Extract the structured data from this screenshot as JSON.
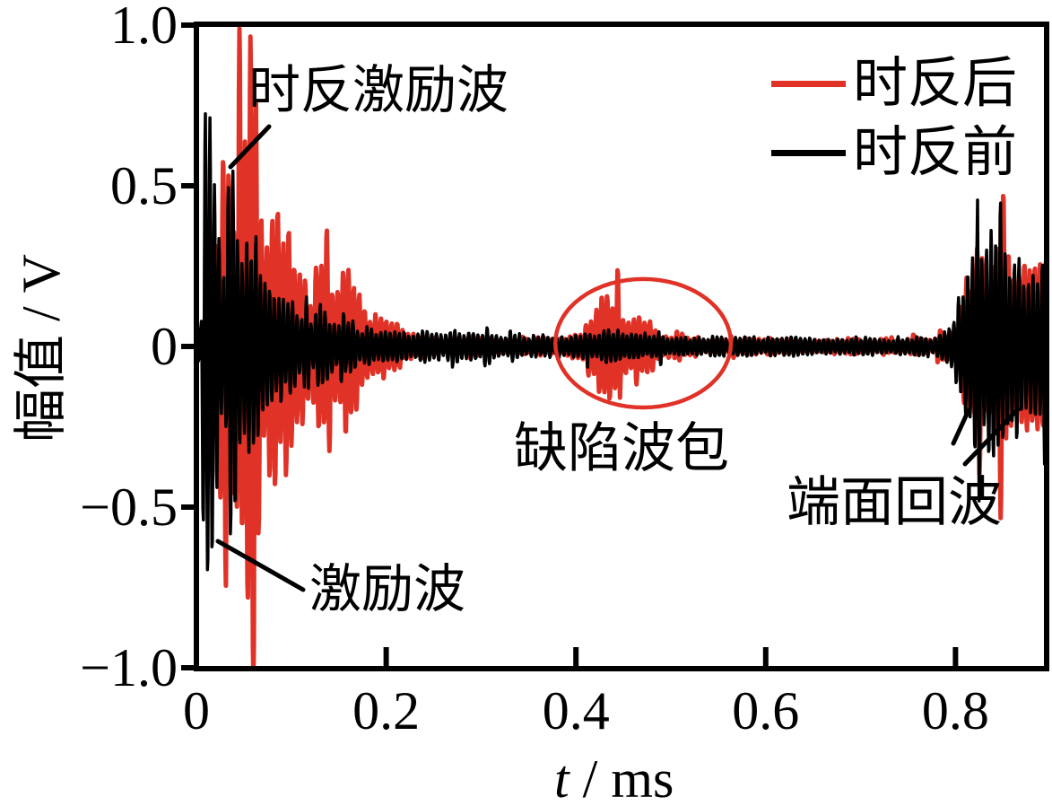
{
  "chart_data": {
    "type": "line",
    "title": "",
    "description": "Ultrasonic guided-wave time-domain signals before and after time reversal",
    "x_axis": {
      "label_var": "t",
      "label_unit": " / ms",
      "range": [
        0,
        0.896
      ],
      "ticks": [
        0,
        0.2,
        0.4,
        0.6,
        0.8
      ],
      "tick_labels": [
        "0",
        "0.2",
        "0.4",
        "0.6",
        "0.8"
      ]
    },
    "y_axis": {
      "label": "幅值 / V",
      "range": [
        -1.0,
        1.0
      ],
      "ticks": [
        1.0,
        0.5,
        0,
        -0.5,
        -1.0
      ],
      "tick_labels": [
        "1.0",
        "0.5",
        "0",
        "−0.5",
        "−1.0"
      ]
    },
    "grid": false,
    "legend_position": "top-right",
    "legend": {
      "entries": [
        {
          "label": "时反后",
          "color": "#e03227"
        },
        {
          "label": "时反前",
          "color": "#000000"
        }
      ]
    },
    "series": [
      {
        "name": "时反后",
        "color": "#e03227",
        "carrier_freq_per_ms": 175,
        "seed": 11,
        "stroke_width": 5,
        "envelope": [
          [
            0,
            0.03
          ],
          [
            0.008,
            0.05
          ],
          [
            0.018,
            0.12
          ],
          [
            0.026,
            0.5
          ],
          [
            0.033,
            0.62
          ],
          [
            0.04,
            0.4
          ],
          [
            0.046,
            0.9
          ],
          [
            0.05,
            1.05
          ],
          [
            0.062,
            1.05
          ],
          [
            0.068,
            0.55
          ],
          [
            0.074,
            0.38
          ],
          [
            0.082,
            0.55
          ],
          [
            0.09,
            0.48
          ],
          [
            0.1,
            0.36
          ],
          [
            0.11,
            0.26
          ],
          [
            0.12,
            0.2
          ],
          [
            0.13,
            0.34
          ],
          [
            0.142,
            0.24
          ],
          [
            0.155,
            0.3
          ],
          [
            0.168,
            0.2
          ],
          [
            0.18,
            0.14
          ],
          [
            0.2,
            0.1
          ],
          [
            0.215,
            0.07
          ],
          [
            0.23,
            0.045
          ],
          [
            0.25,
            0.032
          ],
          [
            0.28,
            0.028
          ],
          [
            0.32,
            0.026
          ],
          [
            0.36,
            0.026
          ],
          [
            0.39,
            0.03
          ],
          [
            0.405,
            0.06
          ],
          [
            0.418,
            0.14
          ],
          [
            0.43,
            0.22
          ],
          [
            0.44,
            0.2
          ],
          [
            0.45,
            0.12
          ],
          [
            0.462,
            0.1
          ],
          [
            0.472,
            0.07
          ],
          [
            0.485,
            0.05
          ],
          [
            0.5,
            0.035
          ],
          [
            0.53,
            0.028
          ],
          [
            0.58,
            0.026
          ],
          [
            0.65,
            0.026
          ],
          [
            0.72,
            0.026
          ],
          [
            0.77,
            0.028
          ],
          [
            0.795,
            0.04
          ],
          [
            0.805,
            0.12
          ],
          [
            0.815,
            0.28
          ],
          [
            0.825,
            0.42
          ],
          [
            0.835,
            0.3
          ],
          [
            0.845,
            0.38
          ],
          [
            0.855,
            0.32
          ],
          [
            0.865,
            0.26
          ],
          [
            0.878,
            0.32
          ],
          [
            0.89,
            0.28
          ],
          [
            0.896,
            0.3
          ]
        ]
      },
      {
        "name": "时反前",
        "color": "#000000",
        "carrier_freq_per_ms": 205,
        "seed": 7,
        "stroke_width": 3.5,
        "envelope": [
          [
            0,
            0.05
          ],
          [
            0.005,
            0.08
          ],
          [
            0.008,
            1.06
          ],
          [
            0.016,
            1.06
          ],
          [
            0.02,
            0.6
          ],
          [
            0.026,
            0.35
          ],
          [
            0.032,
            0.5
          ],
          [
            0.04,
            0.52
          ],
          [
            0.05,
            0.46
          ],
          [
            0.06,
            0.4
          ],
          [
            0.07,
            0.32
          ],
          [
            0.08,
            0.26
          ],
          [
            0.09,
            0.2
          ],
          [
            0.1,
            0.16
          ],
          [
            0.112,
            0.13
          ],
          [
            0.125,
            0.11
          ],
          [
            0.14,
            0.095
          ],
          [
            0.16,
            0.085
          ],
          [
            0.18,
            0.075
          ],
          [
            0.2,
            0.065
          ],
          [
            0.23,
            0.055
          ],
          [
            0.26,
            0.05
          ],
          [
            0.3,
            0.042
          ],
          [
            0.35,
            0.038
          ],
          [
            0.4,
            0.042
          ],
          [
            0.42,
            0.05
          ],
          [
            0.445,
            0.055
          ],
          [
            0.47,
            0.045
          ],
          [
            0.5,
            0.038
          ],
          [
            0.55,
            0.034
          ],
          [
            0.62,
            0.032
          ],
          [
            0.7,
            0.032
          ],
          [
            0.76,
            0.034
          ],
          [
            0.785,
            0.04
          ],
          [
            0.798,
            0.09
          ],
          [
            0.808,
            0.28
          ],
          [
            0.818,
            0.42
          ],
          [
            0.828,
            0.36
          ],
          [
            0.838,
            0.46
          ],
          [
            0.848,
            0.36
          ],
          [
            0.858,
            0.3
          ],
          [
            0.868,
            0.36
          ],
          [
            0.878,
            0.3
          ],
          [
            0.888,
            0.34
          ],
          [
            0.896,
            0.3
          ]
        ]
      }
    ],
    "annotations": [
      {
        "text": "时反激励波",
        "target": "red excitation burst near t=0.05 ms"
      },
      {
        "text": "激励波",
        "target": "black excitation spike near t=0.01 ms"
      },
      {
        "text": "缺陷波包",
        "target": "defect wave packet circled near t=0.45 ms"
      },
      {
        "text": "端面回波",
        "target": "end-face echo burst near t=0.82 ms"
      }
    ],
    "highlight_ellipse": {
      "cx_ms": 0.4708,
      "cy_v": 0.01,
      "rx_ms": 0.0925,
      "ry_v": 0.2,
      "color": "#e03227"
    }
  }
}
